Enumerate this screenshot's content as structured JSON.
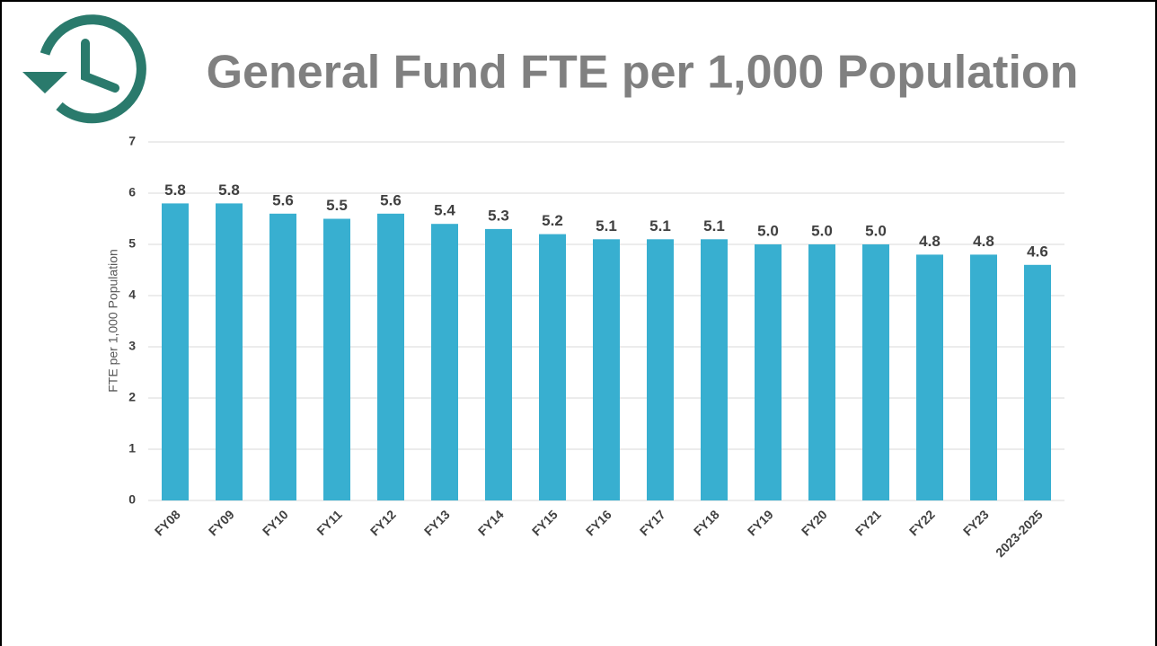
{
  "chart_data": {
    "type": "bar",
    "title": "General Fund FTE per 1,000 Population",
    "y_label": "FTE per 1,000 Population",
    "categories": [
      "FY08",
      "FY09",
      "FY10",
      "FY11",
      "FY12",
      "FY13",
      "FY14",
      "FY15",
      "FY16",
      "FY17",
      "FY18",
      "FY19",
      "FY20",
      "FY21",
      "FY22",
      "FY23",
      "2023-2025"
    ],
    "values": [
      5.8,
      5.8,
      5.6,
      5.5,
      5.6,
      5.4,
      5.3,
      5.2,
      5.1,
      5.1,
      5.1,
      5.0,
      5.0,
      5.0,
      4.8,
      4.8,
      4.6
    ],
    "value_labels": [
      "5.8",
      "5.8",
      "5.6",
      "5.5",
      "5.6",
      "5.4",
      "5.3",
      "5.2",
      "5.1",
      "5.1",
      "5.1",
      "5.0",
      "5.0",
      "5.0",
      "4.8",
      "4.8",
      "4.6"
    ],
    "color": "#38afd0",
    "ylim": [
      0,
      7
    ],
    "yticks": [
      0,
      1,
      2,
      3,
      4,
      5,
      6,
      7
    ],
    "grid": true
  }
}
